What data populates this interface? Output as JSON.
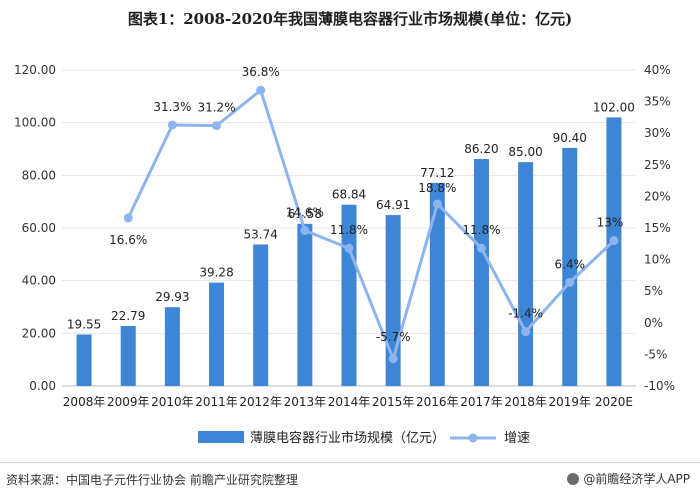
{
  "title": "图表1：2008-2020年我国薄膜电容器行业市场规模(单位：亿元)",
  "chart_data": {
    "type": "bar",
    "categories": [
      "2008年",
      "2009年",
      "2010年",
      "2011年",
      "2012年",
      "2013年",
      "2014年",
      "2015年",
      "2016年",
      "2017年",
      "2018年",
      "2019年",
      "2020E"
    ],
    "series": [
      {
        "name": "薄膜电容器行业市场规模（亿元）",
        "type": "bar",
        "axis": "left",
        "values": [
          19.55,
          22.79,
          29.93,
          39.28,
          53.74,
          61.58,
          68.84,
          64.91,
          77.12,
          86.2,
          85.0,
          90.4,
          102.0
        ],
        "labels": [
          "19.55",
          "22.79",
          "29.93",
          "39.28",
          "53.74",
          "61.58",
          "68.84",
          "64.91",
          "77.12",
          "86.20",
          "85.00",
          "90.40",
          "102.00"
        ]
      },
      {
        "name": "增速",
        "type": "line",
        "axis": "right",
        "values": [
          null,
          16.6,
          31.3,
          31.2,
          36.8,
          14.6,
          11.8,
          -5.7,
          18.8,
          11.8,
          -1.4,
          6.4,
          13
        ],
        "labels": [
          "",
          "16.6%",
          "31.3%",
          "31.2%",
          "36.8%",
          "14.6%",
          "11.8%",
          "-5.7%",
          "18.8%",
          "11.8%",
          "-1.4%",
          "6.4%",
          "13%"
        ]
      }
    ],
    "y_left": {
      "min": 0,
      "max": 120,
      "ticks": [
        "0.00",
        "20.00",
        "40.00",
        "60.00",
        "80.00",
        "100.00",
        "120.00"
      ]
    },
    "y_right": {
      "min": -10,
      "max": 40,
      "ticks": [
        "-10%",
        "-5%",
        "0%",
        "5%",
        "10%",
        "15%",
        "20%",
        "25%",
        "30%",
        "35%",
        "40%"
      ]
    },
    "legend_position": "bottom",
    "colors": {
      "bar": "#3d86d6",
      "line": "#8db4ef"
    }
  },
  "footer": {
    "source": "资料来源：中国电子元件行业协会 前瞻产业研究院整理",
    "brand": "@前瞻经济学人APP"
  }
}
